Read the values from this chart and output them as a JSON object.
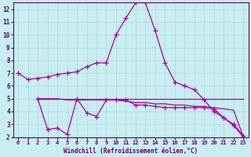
{
  "xlabel": "Windchill (Refroidissement éolien,°C)",
  "background_color": "#c8eef0",
  "grid_color": "#b0d8dc",
  "line_color": "#aa00aa",
  "spine_color": "#660066",
  "xlim": [
    -0.5,
    23.5
  ],
  "ylim": [
    2,
    12.5
  ],
  "yticks": [
    2,
    3,
    4,
    5,
    6,
    7,
    8,
    9,
    10,
    11,
    12
  ],
  "xticks": [
    0,
    1,
    2,
    3,
    4,
    5,
    6,
    7,
    8,
    9,
    10,
    11,
    12,
    13,
    14,
    15,
    16,
    17,
    18,
    19,
    20,
    21,
    22,
    23
  ],
  "line1_x": [
    0,
    1,
    2,
    3,
    4,
    5,
    6,
    7,
    8,
    9,
    10,
    11,
    12,
    13,
    14,
    15,
    16,
    17,
    18,
    19,
    20,
    21,
    22,
    23
  ],
  "line1_y": [
    7.0,
    6.5,
    6.6,
    6.7,
    6.9,
    7.0,
    7.1,
    7.5,
    7.8,
    7.8,
    10.0,
    11.3,
    12.5,
    12.5,
    10.3,
    7.8,
    6.3,
    6.0,
    5.7,
    4.9,
    4.0,
    3.5,
    3.0,
    2.1
  ],
  "line2_x": [
    2,
    3,
    4,
    5,
    6,
    7,
    8,
    9,
    10,
    11,
    12,
    13,
    14,
    15,
    16,
    17,
    18,
    19,
    20,
    21,
    22,
    23
  ],
  "line2_y": [
    5.0,
    2.6,
    2.7,
    2.2,
    5.0,
    3.9,
    3.6,
    4.9,
    4.9,
    4.9,
    4.5,
    4.5,
    4.4,
    4.3,
    4.3,
    4.3,
    4.3,
    4.3,
    4.2,
    3.5,
    2.9,
    2.0
  ],
  "line3_x": [
    2,
    3,
    4,
    5,
    6,
    7,
    8,
    9,
    10,
    11,
    12,
    13,
    14,
    15,
    16,
    17,
    18,
    19,
    20,
    21,
    22,
    23
  ],
  "line3_y": [
    5.0,
    5.0,
    5.0,
    5.0,
    5.0,
    5.0,
    5.0,
    5.0,
    5.0,
    5.0,
    5.0,
    5.0,
    5.0,
    5.0,
    5.0,
    5.0,
    5.0,
    5.0,
    5.0,
    5.0,
    5.0,
    5.0
  ],
  "line4_x": [
    2,
    3,
    4,
    5,
    6,
    7,
    8,
    9,
    10,
    11,
    12,
    13,
    14,
    15,
    16,
    17,
    18,
    19,
    20,
    21,
    22,
    23
  ],
  "line4_y": [
    5.0,
    5.0,
    5.0,
    4.9,
    4.9,
    4.9,
    4.9,
    4.9,
    4.9,
    4.8,
    4.7,
    4.7,
    4.6,
    4.6,
    4.5,
    4.5,
    4.4,
    4.4,
    4.3,
    4.2,
    4.1,
    2.0
  ]
}
